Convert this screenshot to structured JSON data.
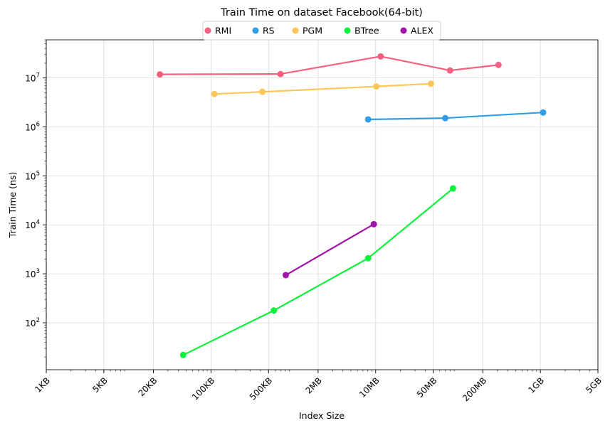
{
  "chart_data": {
    "type": "line",
    "title": "Train Time on dataset Facebook(64-bit)",
    "xlabel": "Index Size",
    "ylabel": "Train Time (ns)",
    "xscale": "log",
    "yscale": "log",
    "xlim_bytes": [
      1000,
      5000000000
    ],
    "ylim": [
      11,
      60000000
    ],
    "grid": true,
    "legend_position": "top-center",
    "x_ticks": [
      {
        "label": "1KB",
        "value": 1000
      },
      {
        "label": "5KB",
        "value": 5000
      },
      {
        "label": "20KB",
        "value": 20000
      },
      {
        "label": "100KB",
        "value": 100000
      },
      {
        "label": "500KB",
        "value": 500000
      },
      {
        "label": "2MB",
        "value": 2000000
      },
      {
        "label": "10MB",
        "value": 10000000
      },
      {
        "label": "50MB",
        "value": 50000000
      },
      {
        "label": "200MB",
        "value": 200000000
      },
      {
        "label": "1GB",
        "value": 1000000000
      },
      {
        "label": "5GB",
        "value": 5000000000
      }
    ],
    "y_ticks": [
      {
        "base": "10",
        "exp": "2",
        "value": 100
      },
      {
        "base": "10",
        "exp": "3",
        "value": 1000
      },
      {
        "base": "10",
        "exp": "4",
        "value": 10000
      },
      {
        "base": "10",
        "exp": "5",
        "value": 100000
      },
      {
        "base": "10",
        "exp": "6",
        "value": 1000000
      },
      {
        "base": "10",
        "exp": "7",
        "value": 10000000
      }
    ],
    "series": [
      {
        "name": "RMI",
        "color": "#f5617f",
        "x": [
          24000,
          700000,
          11500000,
          80000000,
          310000000
        ],
        "y": [
          11800000,
          12000000,
          27500000,
          14200000,
          18400000
        ]
      },
      {
        "name": "RS",
        "color": "#2f9ee6",
        "x": [
          8100000,
          70000000,
          1080000000
        ],
        "y": [
          1420000,
          1510000,
          1970000
        ]
      },
      {
        "name": "PGM",
        "color": "#fdc658",
        "x": [
          110000,
          420000,
          10200000,
          47000000
        ],
        "y": [
          4700000,
          5200000,
          6700000,
          7600000
        ]
      },
      {
        "name": "BTree",
        "color": "#0cf13c",
        "x": [
          46000,
          580000,
          8100000,
          87000000
        ],
        "y": [
          22,
          178,
          2080,
          55500
        ]
      },
      {
        "name": "ALEX",
        "color": "#a014a8",
        "x": [
          810000,
          9500000
        ],
        "y": [
          940,
          10300
        ]
      }
    ]
  }
}
